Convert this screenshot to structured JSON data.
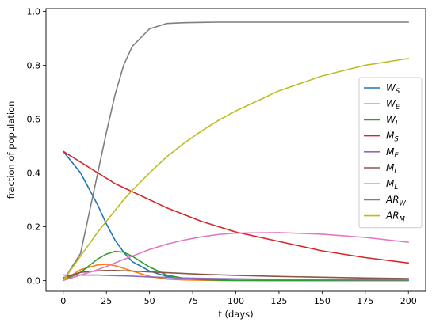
{
  "chart_data": {
    "type": "line",
    "title": "",
    "xlabel": "t (days)",
    "ylabel": "fraction of population",
    "xlim": [
      -10,
      210
    ],
    "ylim": [
      -0.04,
      1.01
    ],
    "xticks": [
      0,
      25,
      50,
      75,
      100,
      125,
      150,
      175,
      200
    ],
    "yticks": [
      0.0,
      0.2,
      0.4,
      0.6,
      0.8,
      1.0
    ],
    "xtick_labels": [
      "0",
      "25",
      "50",
      "75",
      "100",
      "125",
      "150",
      "175",
      "200"
    ],
    "ytick_labels": [
      "0.0",
      "0.2",
      "0.4",
      "0.6",
      "0.8",
      "1.0"
    ],
    "grid": false,
    "legend_position": "right-center",
    "x": [
      0,
      10,
      20,
      25,
      30,
      35,
      40,
      50,
      60,
      70,
      80,
      90,
      100,
      125,
      150,
      175,
      200
    ],
    "series": [
      {
        "name": "W",
        "sub": "S",
        "color": "#1f77b4",
        "values": [
          0.48,
          0.4,
          0.28,
          0.21,
          0.15,
          0.105,
          0.07,
          0.035,
          0.015,
          0.007,
          0.004,
          0.002,
          0.001,
          0.0,
          0.0,
          0.0,
          0.0
        ]
      },
      {
        "name": "W",
        "sub": "E",
        "color": "#ff7f0e",
        "values": [
          0.0,
          0.04,
          0.058,
          0.06,
          0.055,
          0.045,
          0.035,
          0.015,
          0.005,
          0.002,
          0.001,
          0.0,
          0.0,
          0.0,
          0.0,
          0.0,
          0.0
        ]
      },
      {
        "name": "W",
        "sub": "I",
        "color": "#2ca02c",
        "values": [
          0.0,
          0.03,
          0.08,
          0.098,
          0.108,
          0.105,
          0.09,
          0.05,
          0.02,
          0.008,
          0.003,
          0.001,
          0.0,
          0.0,
          0.0,
          0.0,
          0.0
        ]
      },
      {
        "name": "M",
        "sub": "S",
        "color": "#d62728",
        "values": [
          0.48,
          0.44,
          0.4,
          0.38,
          0.36,
          0.345,
          0.33,
          0.3,
          0.27,
          0.245,
          0.22,
          0.2,
          0.18,
          0.145,
          0.11,
          0.085,
          0.065
        ]
      },
      {
        "name": "M",
        "sub": "E",
        "color": "#9467bd",
        "values": [
          0.02,
          0.02,
          0.02,
          0.019,
          0.018,
          0.017,
          0.016,
          0.013,
          0.011,
          0.009,
          0.008,
          0.007,
          0.006,
          0.004,
          0.003,
          0.002,
          0.002
        ]
      },
      {
        "name": "M",
        "sub": "I",
        "color": "#8c564b",
        "values": [
          0.01,
          0.03,
          0.036,
          0.037,
          0.037,
          0.036,
          0.035,
          0.032,
          0.029,
          0.026,
          0.023,
          0.021,
          0.019,
          0.015,
          0.012,
          0.009,
          0.007
        ]
      },
      {
        "name": "M",
        "sub": "L",
        "color": "#e377c2",
        "values": [
          0.0,
          0.02,
          0.04,
          0.052,
          0.065,
          0.078,
          0.09,
          0.115,
          0.135,
          0.15,
          0.162,
          0.171,
          0.176,
          0.178,
          0.172,
          0.16,
          0.142
        ]
      },
      {
        "name": "AR",
        "sub": "W",
        "color": "#7f7f7f",
        "values": [
          0.0,
          0.1,
          0.4,
          0.55,
          0.69,
          0.8,
          0.87,
          0.935,
          0.955,
          0.958,
          0.959,
          0.96,
          0.96,
          0.96,
          0.96,
          0.96,
          0.96
        ]
      },
      {
        "name": "AR",
        "sub": "M",
        "color": "#bcbd22",
        "values": [
          0.0,
          0.09,
          0.18,
          0.22,
          0.26,
          0.3,
          0.335,
          0.4,
          0.46,
          0.51,
          0.555,
          0.595,
          0.63,
          0.705,
          0.76,
          0.8,
          0.825
        ]
      }
    ]
  }
}
